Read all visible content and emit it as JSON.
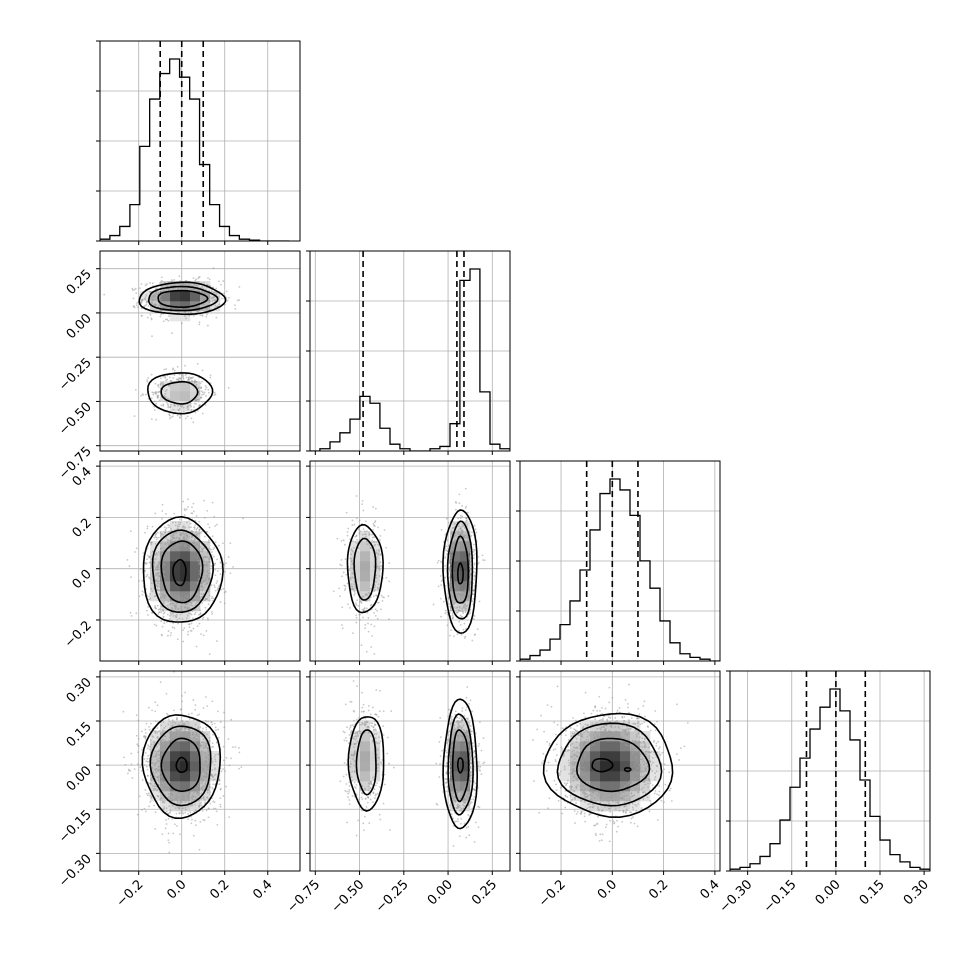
{
  "chart_data": {
    "type": "corner",
    "title": "",
    "parameters": [
      {
        "range": [
          -0.38,
          0.55
        ],
        "ticks": [
          -0.2,
          0.0,
          0.2,
          0.4
        ],
        "tick_labels": [
          "−0.2",
          "0.0",
          "0.2",
          "0.4"
        ],
        "quantiles": [
          -0.1,
          0.0,
          0.1
        ],
        "hist_edges": [
          -0.38,
          -0.334,
          -0.288,
          -0.241,
          -0.195,
          -0.149,
          -0.102,
          -0.056,
          -0.01,
          0.037,
          0.083,
          0.13,
          0.176,
          0.222,
          0.268,
          0.315,
          0.362,
          0.408,
          0.455,
          0.5
        ],
        "hist_counts": [
          1,
          3,
          8,
          20,
          52,
          78,
          92,
          100,
          90,
          78,
          42,
          20,
          8,
          3,
          1,
          0.5,
          0,
          0,
          0
        ]
      },
      {
        "range": [
          -0.78,
          0.35
        ],
        "ticks": [
          -0.75,
          -0.5,
          -0.25,
          0.0,
          0.25
        ],
        "tick_labels": [
          "−0.75",
          "−0.50",
          "−0.25",
          "0.00",
          "0.25"
        ],
        "quantiles": [
          -0.48,
          0.05,
          0.09
        ],
        "hist_edges": [
          -0.78,
          -0.724,
          -0.667,
          -0.611,
          -0.554,
          -0.498,
          -0.441,
          -0.385,
          -0.328,
          -0.272,
          -0.215,
          -0.159,
          -0.102,
          -0.046,
          0.011,
          0.067,
          0.124,
          0.18,
          0.237,
          0.293,
          0.35
        ],
        "hist_counts": [
          0,
          1,
          4,
          8,
          14,
          24,
          21,
          10,
          3,
          1,
          0,
          0,
          1,
          2,
          12,
          75,
          80,
          26,
          3,
          1
        ]
      },
      {
        "range": [
          -0.36,
          0.42
        ],
        "ticks": [
          -0.2,
          0.0,
          0.2,
          0.4
        ],
        "tick_labels": [
          "−0.2",
          "0.0",
          "0.2",
          "0.4"
        ],
        "quantiles": [
          -0.1,
          0.0,
          0.1
        ],
        "hist_edges": [
          -0.36,
          -0.321,
          -0.282,
          -0.243,
          -0.204,
          -0.165,
          -0.126,
          -0.087,
          -0.048,
          -0.009,
          0.03,
          0.069,
          0.108,
          0.147,
          0.186,
          0.225,
          0.264,
          0.303,
          0.342,
          0.381,
          0.42
        ],
        "hist_counts": [
          1,
          3,
          6,
          12,
          20,
          33,
          50,
          72,
          92,
          100,
          94,
          80,
          55,
          40,
          22,
          10,
          4,
          2,
          1,
          0
        ]
      },
      {
        "range": [
          -0.36,
          0.32
        ],
        "ticks": [
          -0.3,
          -0.15,
          0.0,
          0.15,
          0.3
        ],
        "tick_labels": [
          "−0.30",
          "−0.15",
          "0.00",
          "0.15",
          "0.30"
        ],
        "quantiles": [
          -0.1,
          0.0,
          0.1
        ],
        "hist_edges": [
          -0.36,
          -0.326,
          -0.292,
          -0.258,
          -0.224,
          -0.19,
          -0.156,
          -0.122,
          -0.088,
          -0.054,
          -0.02,
          0.014,
          0.048,
          0.082,
          0.116,
          0.15,
          0.184,
          0.218,
          0.252,
          0.286,
          0.32
        ],
        "hist_counts": [
          1,
          2,
          4,
          8,
          15,
          28,
          46,
          62,
          78,
          90,
          100,
          88,
          72,
          50,
          30,
          17,
          9,
          5,
          2,
          1
        ]
      }
    ],
    "pair_panels": [
      {
        "x": 0,
        "y": 1,
        "blobs": [
          {
            "cx": 0.0,
            "cy": 0.08,
            "sx": 0.085,
            "sy": 0.048,
            "w": 1.0,
            "n": 900
          },
          {
            "cx": 0.0,
            "cy": -0.45,
            "sx": 0.065,
            "sy": 0.06,
            "w": 0.33,
            "n": 450
          }
        ],
        "contours": [
          {
            "cx": 0.0,
            "cy": 0.08,
            "rx": 0.2,
            "ry": 0.09
          },
          {
            "cx": 0.0,
            "cy": 0.08,
            "rx": 0.16,
            "ry": 0.068
          },
          {
            "cx": 0.0,
            "cy": 0.08,
            "rx": 0.115,
            "ry": 0.047
          },
          {
            "cx": -0.01,
            "cy": -0.45,
            "rx": 0.15,
            "ry": 0.115
          },
          {
            "cx": -0.01,
            "cy": -0.45,
            "rx": 0.085,
            "ry": 0.062
          }
        ]
      },
      {
        "x": 0,
        "y": 2,
        "blobs": [
          {
            "cx": 0.0,
            "cy": -0.01,
            "sx": 0.075,
            "sy": 0.09,
            "w": 1.0,
            "n": 1700
          }
        ],
        "contours": [
          {
            "cx": 0.0,
            "cy": -0.01,
            "rx": 0.185,
            "ry": 0.205
          },
          {
            "cx": 0.0,
            "cy": -0.01,
            "rx": 0.14,
            "ry": 0.16
          },
          {
            "cx": 0.0,
            "cy": -0.01,
            "rx": 0.095,
            "ry": 0.12
          },
          {
            "cx": -0.01,
            "cy": -0.015,
            "rx": 0.03,
            "ry": 0.05
          }
        ]
      },
      {
        "x": 1,
        "y": 2,
        "blobs": [
          {
            "cx": -0.47,
            "cy": 0.0,
            "sx": 0.05,
            "sy": 0.09,
            "w": 0.4,
            "n": 500
          },
          {
            "cx": 0.07,
            "cy": 0.0,
            "sx": 0.04,
            "sy": 0.09,
            "w": 1.0,
            "n": 1100
          }
        ],
        "contours": [
          {
            "cx": -0.47,
            "cy": 0.0,
            "rx": 0.1,
            "ry": 0.17
          },
          {
            "cx": -0.47,
            "cy": 0.0,
            "rx": 0.06,
            "ry": 0.12
          },
          {
            "cx": 0.07,
            "cy": -0.01,
            "rx": 0.095,
            "ry": 0.24
          },
          {
            "cx": 0.07,
            "cy": -0.01,
            "rx": 0.07,
            "ry": 0.19
          },
          {
            "cx": 0.07,
            "cy": -0.01,
            "rx": 0.045,
            "ry": 0.13
          },
          {
            "cx": 0.07,
            "cy": -0.02,
            "rx": 0.015,
            "ry": 0.04
          }
        ]
      },
      {
        "x": 0,
        "y": 3,
        "blobs": [
          {
            "cx": 0.0,
            "cy": 0.0,
            "sx": 0.08,
            "sy": 0.08,
            "w": 1.0,
            "n": 1700
          }
        ],
        "contours": [
          {
            "cx": 0.0,
            "cy": 0.0,
            "rx": 0.18,
            "ry": 0.175
          },
          {
            "cx": 0.0,
            "cy": 0.0,
            "rx": 0.14,
            "ry": 0.135
          },
          {
            "cx": 0.0,
            "cy": 0.0,
            "rx": 0.09,
            "ry": 0.09
          },
          {
            "cx": 0.0,
            "cy": 0.0,
            "rx": 0.025,
            "ry": 0.025
          }
        ]
      },
      {
        "x": 1,
        "y": 3,
        "blobs": [
          {
            "cx": -0.47,
            "cy": 0.02,
            "sx": 0.05,
            "sy": 0.08,
            "w": 0.4,
            "n": 500
          },
          {
            "cx": 0.07,
            "cy": 0.0,
            "sx": 0.04,
            "sy": 0.08,
            "w": 1.0,
            "n": 1100
          }
        ],
        "contours": [
          {
            "cx": -0.46,
            "cy": 0.01,
            "rx": 0.1,
            "ry": 0.16
          },
          {
            "cx": -0.46,
            "cy": 0.01,
            "rx": 0.055,
            "ry": 0.11
          },
          {
            "cx": 0.07,
            "cy": 0.0,
            "rx": 0.095,
            "ry": 0.22
          },
          {
            "cx": 0.07,
            "cy": 0.0,
            "rx": 0.07,
            "ry": 0.17
          },
          {
            "cx": 0.07,
            "cy": 0.0,
            "rx": 0.045,
            "ry": 0.12
          },
          {
            "cx": 0.07,
            "cy": 0.0,
            "rx": 0.015,
            "ry": 0.025
          }
        ]
      },
      {
        "x": 2,
        "y": 3,
        "blobs": [
          {
            "cx": -0.01,
            "cy": 0.0,
            "sx": 0.09,
            "sy": 0.08,
            "w": 1.0,
            "n": 1700
          }
        ],
        "contours": [
          {
            "cx": -0.01,
            "cy": 0.0,
            "rx": 0.25,
            "ry": 0.175
          },
          {
            "cx": -0.01,
            "cy": 0.0,
            "rx": 0.2,
            "ry": 0.14
          },
          {
            "cx": 0.0,
            "cy": 0.0,
            "rx": 0.14,
            "ry": 0.09
          },
          {
            "cx": -0.04,
            "cy": 0.0,
            "rx": 0.04,
            "ry": 0.022
          },
          {
            "cx": 0.06,
            "cy": -0.015,
            "rx": 0.012,
            "ry": 0.006
          }
        ]
      }
    ]
  }
}
